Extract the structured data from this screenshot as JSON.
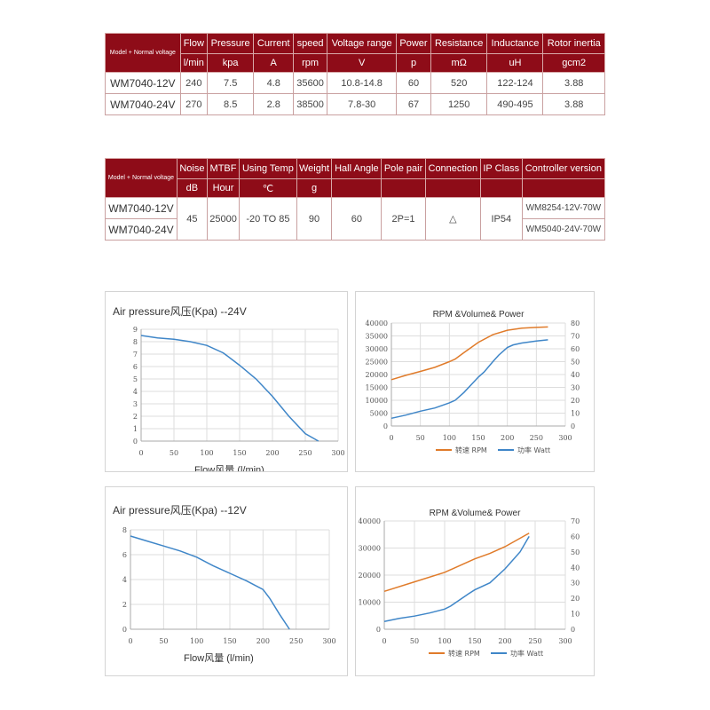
{
  "table1": {
    "corner": "Model + Normal voltage",
    "headers": [
      "Flow",
      "Pressure",
      "Current",
      "speed",
      "Voltage range",
      "Power",
      "Resistance",
      "Inductance",
      "Rotor inertia"
    ],
    "units": [
      "l/min",
      "kpa",
      "A",
      "rpm",
      "V",
      "p",
      "mΩ",
      "uH",
      "gcm2"
    ],
    "rows": [
      {
        "model": "WM7040-12V",
        "cells": [
          "240",
          "7.5",
          "4.8",
          "35600",
          "10.8-14.8",
          "60",
          "520",
          "122-124",
          "3.88"
        ]
      },
      {
        "model": "WM7040-24V",
        "cells": [
          "270",
          "8.5",
          "2.8",
          "38500",
          "7.8-30",
          "67",
          "1250",
          "490-495",
          "3.88"
        ]
      }
    ]
  },
  "table2": {
    "corner": "Model + Normal voltage",
    "headers": [
      "Noise",
      "MTBF",
      "Using Temp",
      "Weight",
      "Hall Angle",
      "Pole pair",
      "Connection",
      "IP Class",
      "Controller version"
    ],
    "units": [
      "dB",
      "Hour",
      "℃",
      "g",
      "",
      "",
      "",
      "",
      ""
    ],
    "models": [
      "WM7040-12V",
      "WM7040-24V"
    ],
    "shared": [
      "45",
      "25000",
      "-20 TO 85",
      "90",
      "60",
      "2P=1",
      "△",
      "IP54"
    ],
    "controllers": [
      "WM8254-12V-70W",
      "WM5040-24V-70W"
    ]
  },
  "colors": {
    "header": "#8e0c18",
    "rpm": "#e07b2a",
    "power": "#3f86c8",
    "pressure": "#3f86c8"
  },
  "chart_data": [
    {
      "type": "line",
      "title": "Air pressure风压(Kpa)  --24V",
      "xlabel": "Flow风量   (l/min)",
      "xlim": [
        0,
        300
      ],
      "xticks": [
        0,
        50,
        100,
        150,
        200,
        250,
        300
      ],
      "ylim": [
        0,
        9
      ],
      "yticks": [
        0,
        1,
        2,
        3,
        4,
        5,
        6,
        7,
        8,
        9
      ],
      "series": [
        {
          "name": "Pressure",
          "x": [
            0,
            25,
            50,
            75,
            100,
            125,
            150,
            175,
            200,
            225,
            250,
            270
          ],
          "y": [
            8.5,
            8.3,
            8.2,
            8.0,
            7.7,
            7.1,
            6.1,
            5.0,
            3.6,
            2.0,
            0.6,
            0
          ]
        }
      ]
    },
    {
      "type": "line",
      "title": "RPM &Volume& Power",
      "xlim": [
        0,
        300
      ],
      "xticks": [
        0,
        50,
        100,
        150,
        200,
        250,
        300
      ],
      "ylim": [
        0,
        40000
      ],
      "yticks": [
        0,
        5000,
        10000,
        15000,
        20000,
        25000,
        30000,
        35000,
        40000
      ],
      "y2lim": [
        0,
        80
      ],
      "y2ticks": [
        0,
        10,
        20,
        30,
        40,
        50,
        60,
        70,
        80
      ],
      "series": [
        {
          "name": "转速 RPM",
          "axis": "left",
          "x": [
            0,
            25,
            50,
            75,
            100,
            110,
            125,
            150,
            175,
            200,
            225,
            250,
            270
          ],
          "y": [
            18000,
            19700,
            21200,
            22800,
            25000,
            26000,
            28500,
            32500,
            35500,
            37200,
            38000,
            38300,
            38500
          ]
        },
        {
          "name": "功率 Watt",
          "axis": "right",
          "x": [
            0,
            25,
            50,
            75,
            100,
            110,
            125,
            150,
            160,
            175,
            185,
            200,
            210,
            225,
            250,
            270
          ],
          "y": [
            6,
            8.5,
            11.5,
            14,
            18,
            20,
            26,
            38,
            42,
            50,
            55,
            61,
            63,
            64.5,
            66,
            67
          ]
        }
      ],
      "legend": "bottom"
    },
    {
      "type": "line",
      "title": "Air pressure风压(Kpa)  --12V",
      "xlabel": "Flow风量   (l/min)",
      "xlim": [
        0,
        300
      ],
      "xticks": [
        0,
        50,
        100,
        150,
        200,
        250,
        300
      ],
      "ylim": [
        0,
        8
      ],
      "yticks": [
        0,
        2,
        4,
        6,
        8
      ],
      "series": [
        {
          "name": "Pressure",
          "x": [
            0,
            25,
            50,
            75,
            100,
            125,
            150,
            175,
            200,
            210,
            225,
            240
          ],
          "y": [
            7.5,
            7.1,
            6.7,
            6.3,
            5.8,
            5.1,
            4.5,
            3.9,
            3.2,
            2.5,
            1.2,
            0
          ]
        }
      ]
    },
    {
      "type": "line",
      "title": "RPM &Volume& Power",
      "xlim": [
        0,
        300
      ],
      "xticks": [
        0,
        50,
        100,
        150,
        200,
        250,
        300
      ],
      "ylim": [
        0,
        40000
      ],
      "yticks": [
        0,
        10000,
        20000,
        30000,
        40000
      ],
      "y2lim": [
        0,
        70
      ],
      "y2ticks": [
        0,
        10,
        20,
        30,
        40,
        50,
        60,
        70
      ],
      "series": [
        {
          "name": "转速 RPM",
          "axis": "left",
          "x": [
            0,
            50,
            100,
            150,
            175,
            200,
            240
          ],
          "y": [
            14000,
            17500,
            21000,
            26000,
            28000,
            30500,
            35500
          ]
        },
        {
          "name": "功率 Watt",
          "axis": "right",
          "x": [
            0,
            25,
            50,
            75,
            100,
            110,
            125,
            140,
            150,
            175,
            200,
            225,
            240
          ],
          "y": [
            5,
            7,
            8.5,
            10.5,
            13,
            15,
            19,
            23,
            25.5,
            30,
            39,
            50,
            60
          ]
        }
      ],
      "legend": "bottom"
    }
  ]
}
